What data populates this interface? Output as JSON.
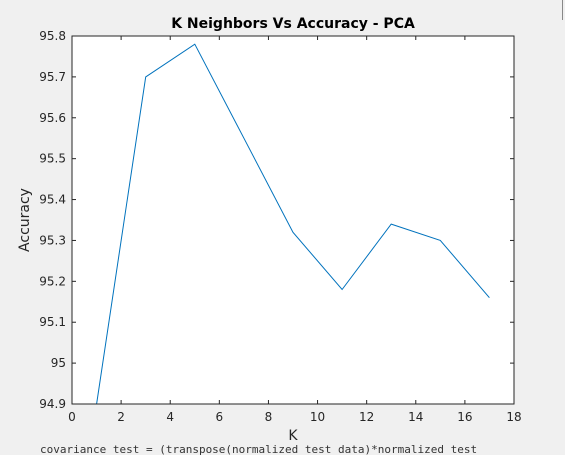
{
  "background_code": "covariance_test = (transpose(normalized_test_data)*normalized_test",
  "chart_data": {
    "type": "line",
    "title": "K Neighbors Vs Accuracy - PCA",
    "xlabel": "K",
    "ylabel": "Accuracy",
    "xlim": [
      0,
      18
    ],
    "ylim": [
      94.9,
      95.8
    ],
    "xticks": [
      "0",
      "2",
      "4",
      "6",
      "8",
      "10",
      "12",
      "14",
      "16",
      "18"
    ],
    "yticks": [
      "94.9",
      "95",
      "95.1",
      "95.2",
      "95.3",
      "95.4",
      "95.5",
      "95.6",
      "95.7",
      "95.8"
    ],
    "grid": false,
    "series": [
      {
        "x": [
          1,
          3,
          5,
          7,
          9,
          11,
          13,
          15,
          17
        ],
        "y": [
          94.9,
          95.7,
          95.78,
          95.55,
          95.32,
          95.18,
          95.34,
          95.3,
          95.16
        ],
        "color": "#0072bd"
      }
    ]
  }
}
